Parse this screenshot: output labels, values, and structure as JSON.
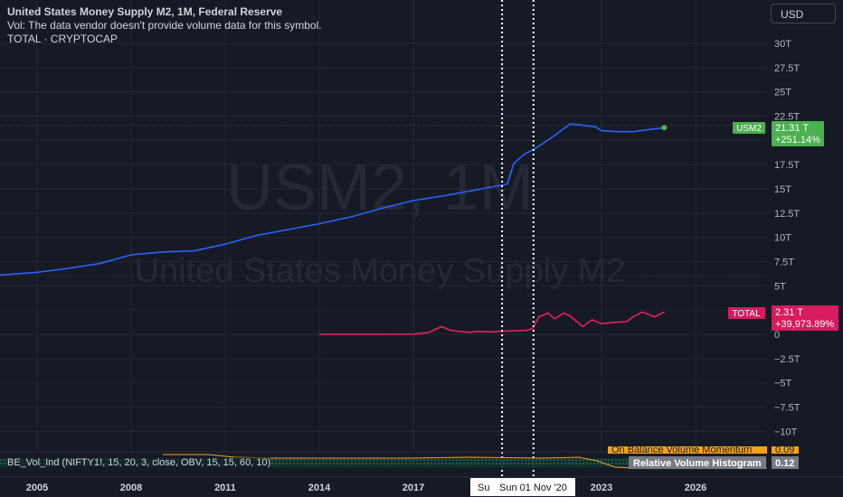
{
  "legend": {
    "title": "United States Money Supply M2, 1M, Federal Reserve",
    "vol_note": "Vol: The data vendor doesn't provide volume data for this symbol.",
    "compare": "TOTAL · CRYPTOCAP"
  },
  "currency": "USD",
  "watermark": {
    "symbol": "USM2, 1M",
    "description": "United States Money Supply M2"
  },
  "indicator": {
    "label": "BE_Vol_Ind (NIFTY1!, 15, 20, 3, close, OBV, 15, 15, 60, 10)",
    "partial_label": "On Balance Volume Momentum",
    "partial_value": "0.09",
    "hist_label": "Relative Volume Histogram",
    "hist_value": "0.12"
  },
  "crosshair": {
    "date_label": "Sun 01 Nov '20",
    "partial_label": "Su"
  },
  "price_labels": {
    "usm2_name": "USM2",
    "usm2_value": "21.31 T",
    "usm2_change": "+251.14%",
    "total_name": "TOTAL",
    "total_value": "2.31 T",
    "total_change": "+39,973.89%"
  },
  "colors": {
    "background": "#161a25",
    "usm2": "#2962ff",
    "usm2_label": "#4caf50",
    "total": "#e91e63",
    "indicator": "#f7a21b",
    "grid": "#242833"
  },
  "chart_data": {
    "type": "line",
    "y_ticks": [
      "30T",
      "27.5T",
      "25T",
      "22.5T",
      "20T",
      "17.5T",
      "15T",
      "12.5T",
      "10T",
      "7.5T",
      "5T",
      "2.5T",
      "0",
      "−2.5T",
      "−5T",
      "−7.5T",
      "−10T"
    ],
    "y_tick_values": [
      30,
      27.5,
      25,
      22.5,
      20,
      17.5,
      15,
      12.5,
      10,
      7.5,
      5,
      2.5,
      0,
      -2.5,
      -5,
      -7.5,
      -10
    ],
    "ylim": [
      -12,
      32
    ],
    "x_ticks": [
      "2005",
      "2008",
      "2011",
      "2014",
      "2017",
      "2023",
      "2026"
    ],
    "x_tick_values": [
      2005,
      2008,
      2011,
      2014,
      2017,
      2023,
      2026
    ],
    "xlim": [
      2003.8,
      2029.4
    ],
    "series": [
      {
        "name": "USM2",
        "x": [
          2003.8,
          2005,
          2006,
          2007,
          2008,
          2009,
          2010,
          2011,
          2012,
          2013,
          2014,
          2015,
          2016,
          2017,
          2018,
          2019,
          2020,
          2020.2,
          2020.4,
          2020.6,
          2020.8,
          2021,
          2021.5,
          2022,
          2022.3,
          2022.8,
          2023,
          2023.5,
          2024,
          2024.5,
          2025
        ],
        "y": [
          6.1,
          6.4,
          6.8,
          7.3,
          8.2,
          8.5,
          8.6,
          9.3,
          10.2,
          10.8,
          11.4,
          12.1,
          13.0,
          13.8,
          14.3,
          14.9,
          15.5,
          17.6,
          18.2,
          18.7,
          19.0,
          19.4,
          20.5,
          21.7,
          21.6,
          21.4,
          21.0,
          20.9,
          20.9,
          21.1,
          21.31
        ]
      },
      {
        "name": "TOTAL",
        "x": [
          2014,
          2016,
          2017,
          2017.5,
          2017.9,
          2018.2,
          2018.8,
          2019,
          2019.5,
          2020,
          2020.6,
          2020.8,
          2021,
          2021.3,
          2021.5,
          2021.8,
          2022,
          2022.4,
          2022.7,
          2023,
          2023.3,
          2023.8,
          2024,
          2024.3,
          2024.7,
          2025
        ],
        "y": [
          0.01,
          0.01,
          0.02,
          0.2,
          0.8,
          0.4,
          0.2,
          0.3,
          0.25,
          0.35,
          0.4,
          0.6,
          1.8,
          2.2,
          1.6,
          2.2,
          1.9,
          0.8,
          1.5,
          1.1,
          1.2,
          1.3,
          1.8,
          2.3,
          1.8,
          2.31
        ]
      }
    ],
    "crosshair_x": [
      2019.83,
      2020.83
    ],
    "grid": true
  }
}
